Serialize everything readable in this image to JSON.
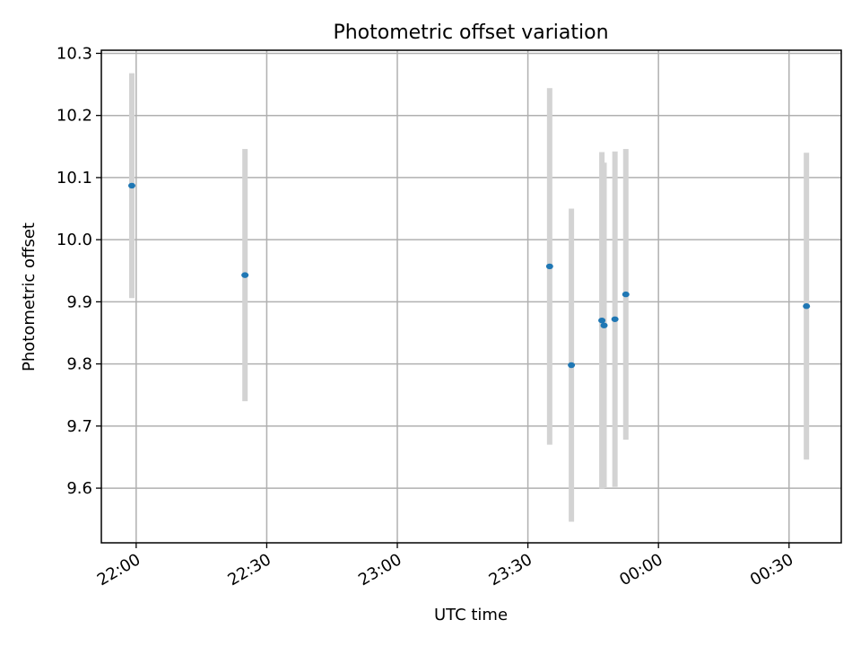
{
  "chart_data": {
    "type": "scatter",
    "title": "Photometric offset variation",
    "xlabel": "UTC time",
    "ylabel": "Photometric offset",
    "x_is_time": true,
    "x_day_boundary": "00:00",
    "xlim": [
      "21:52",
      "00:42"
    ],
    "ylim": [
      9.512,
      10.305
    ],
    "xticks": [
      "22:00",
      "22:30",
      "23:00",
      "23:30",
      "00:00",
      "00:30"
    ],
    "yticks": [
      9.6,
      9.7,
      9.8,
      9.9,
      10.0,
      10.1,
      10.2,
      10.3
    ],
    "grid": true,
    "colors": {
      "point": "#1f77b4",
      "errorbar": "#d3d3d3",
      "grid": "#b0b0b0",
      "axes": "#000000"
    },
    "points": [
      {
        "x": "21:59",
        "y": 10.087,
        "err": 0.181
      },
      {
        "x": "22:25",
        "y": 9.943,
        "err": 0.203
      },
      {
        "x": "23:35",
        "y": 9.957,
        "err": 0.287
      },
      {
        "x": "23:40",
        "y": 9.798,
        "err": 0.252
      },
      {
        "x": "23:47",
        "y": 9.87,
        "err": 0.271
      },
      {
        "x": "23:47.5",
        "y": 9.862,
        "err": 0.262
      },
      {
        "x": "23:50",
        "y": 9.872,
        "err": 0.27
      },
      {
        "x": "23:52.5",
        "y": 9.912,
        "err": 0.234
      },
      {
        "x": "00:34",
        "y": 9.893,
        "err": 0.247
      }
    ]
  }
}
